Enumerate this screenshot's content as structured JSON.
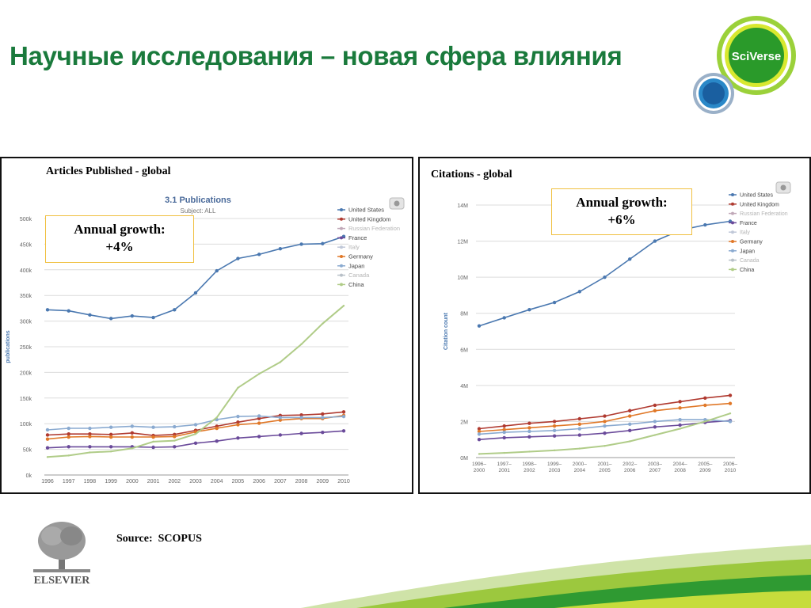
{
  "slide": {
    "title": "Научные исследования – новая сфера влияния",
    "source": "Source:  SCOPUS",
    "logo_text": "SciVerse",
    "publisher": "ELSEVIER",
    "colors": {
      "title": "#1a7a3c",
      "accent_green": "#2e9e2a",
      "accent_blue": "#1a5fa0"
    }
  },
  "panels": {
    "left": {
      "heading": "Articles Published - global",
      "growth_label": "Annual growth:",
      "growth_value": "+4%"
    },
    "right": {
      "heading": "Citations - global",
      "growth_label": "Annual growth:",
      "growth_value": "+6%"
    }
  },
  "chart_data": [
    {
      "type": "line",
      "title": "3.1 Publications",
      "subtitle": "Subject: ALL",
      "xlabel": "",
      "ylabel": "publications",
      "categories": [
        "1996",
        "1997",
        "1998",
        "1999",
        "2000",
        "2001",
        "2002",
        "2003",
        "2004",
        "2005",
        "2006",
        "2007",
        "2008",
        "2009",
        "2010"
      ],
      "ylim": [
        0,
        500000
      ],
      "yticks": [
        0,
        50000,
        100000,
        150000,
        200000,
        250000,
        300000,
        350000,
        400000,
        450000,
        500000
      ],
      "ytick_labels": [
        "0k",
        "50k",
        "100k",
        "150k",
        "200k",
        "250k",
        "300k",
        "350k",
        "400k",
        "450k",
        "500k"
      ],
      "grid": true,
      "legend_position": "right",
      "series": [
        {
          "name": "United States",
          "color": "#4a78b0",
          "marker": true,
          "values": [
            322000,
            320000,
            312000,
            305000,
            310000,
            307000,
            322000,
            355000,
            398000,
            422000,
            430000,
            441000,
            450000,
            451000,
            465000
          ]
        },
        {
          "name": "United Kingdom",
          "color": "#b03a30",
          "marker": true,
          "values": [
            78000,
            80000,
            80000,
            79000,
            82000,
            77000,
            79000,
            87000,
            95000,
            103000,
            110000,
            116000,
            117000,
            119000,
            123000
          ]
        },
        {
          "name": "Russian Federation",
          "color": "#c0a8b8",
          "marker": false,
          "values": [
            null,
            null,
            null,
            null,
            null,
            null,
            null,
            null,
            null,
            null,
            null,
            null,
            null,
            null,
            null
          ]
        },
        {
          "name": "France",
          "color": "#6a4a9a",
          "marker": true,
          "values": [
            53000,
            55000,
            55000,
            55000,
            55000,
            54000,
            55000,
            62000,
            66000,
            72000,
            75000,
            78000,
            81000,
            83000,
            86000
          ]
        },
        {
          "name": "Italy",
          "color": "#c0c8d8",
          "marker": false,
          "values": [
            null,
            null,
            null,
            null,
            null,
            null,
            null,
            null,
            null,
            null,
            null,
            null,
            null,
            null,
            null
          ]
        },
        {
          "name": "Germany",
          "color": "#e07828",
          "marker": true,
          "values": [
            70000,
            74000,
            75000,
            74000,
            74000,
            74000,
            75000,
            84000,
            91000,
            98000,
            101000,
            107000,
            110000,
            110000,
            116000
          ]
        },
        {
          "name": "Japan",
          "color": "#8aaad0",
          "marker": true,
          "values": [
            88000,
            91000,
            91000,
            93000,
            95000,
            93000,
            94000,
            98000,
            108000,
            114000,
            115000,
            112000,
            112000,
            112000,
            114000
          ]
        },
        {
          "name": "Canada",
          "color": "#b8c0c8",
          "marker": false,
          "values": [
            null,
            null,
            null,
            null,
            null,
            null,
            null,
            null,
            null,
            null,
            null,
            null,
            null,
            null,
            null
          ]
        },
        {
          "name": "China",
          "color": "#b0cc88",
          "marker": false,
          "values": [
            35000,
            38000,
            44000,
            46000,
            52000,
            65000,
            67000,
            80000,
            112000,
            170000,
            197000,
            220000,
            255000,
            295000,
            330000
          ]
        }
      ]
    },
    {
      "type": "line",
      "title": "",
      "xlabel": "",
      "ylabel": "Citation count",
      "categories": [
        "1996-2000",
        "1997-2001",
        "1998-2002",
        "1999-2003",
        "2000-2004",
        "2001-2005",
        "2002-2006",
        "2003-2007",
        "2004-2008",
        "2005-2009",
        "2006-2010"
      ],
      "ylim": [
        0,
        14000000
      ],
      "yticks": [
        0,
        2000000,
        4000000,
        6000000,
        8000000,
        10000000,
        12000000,
        14000000
      ],
      "ytick_labels": [
        "0M",
        "2M",
        "4M",
        "6M",
        "8M",
        "10M",
        "12M",
        "14M"
      ],
      "grid": true,
      "legend_position": "top-right",
      "series": [
        {
          "name": "United States",
          "color": "#4a78b0",
          "marker": true,
          "values": [
            7300000,
            7750000,
            8200000,
            8600000,
            9200000,
            10000000,
            11000000,
            12000000,
            12600000,
            12900000,
            13100000
          ]
        },
        {
          "name": "United Kingdom",
          "color": "#b03a30",
          "marker": true,
          "values": [
            1600000,
            1750000,
            1900000,
            2000000,
            2150000,
            2300000,
            2600000,
            2900000,
            3100000,
            3300000,
            3450000
          ]
        },
        {
          "name": "Russian Federation",
          "color": "#c0a8b8",
          "marker": false,
          "values": [
            null,
            null,
            null,
            null,
            null,
            null,
            null,
            null,
            null,
            null,
            null
          ]
        },
        {
          "name": "France",
          "color": "#6a4a9a",
          "marker": true,
          "values": [
            1000000,
            1100000,
            1150000,
            1200000,
            1250000,
            1350000,
            1500000,
            1700000,
            1800000,
            1950000,
            2050000
          ]
        },
        {
          "name": "Italy",
          "color": "#c0c8d8",
          "marker": false,
          "values": [
            null,
            null,
            null,
            null,
            null,
            null,
            null,
            null,
            null,
            null,
            null
          ]
        },
        {
          "name": "Germany",
          "color": "#e07828",
          "marker": true,
          "values": [
            1450000,
            1550000,
            1650000,
            1750000,
            1850000,
            2000000,
            2300000,
            2600000,
            2750000,
            2900000,
            3000000
          ]
        },
        {
          "name": "Japan",
          "color": "#8aaad0",
          "marker": true,
          "values": [
            1300000,
            1400000,
            1450000,
            1500000,
            1600000,
            1750000,
            1850000,
            2000000,
            2100000,
            2100000,
            2000000
          ]
        },
        {
          "name": "Canada",
          "color": "#b8c0c8",
          "marker": false,
          "values": [
            null,
            null,
            null,
            null,
            null,
            null,
            null,
            null,
            null,
            null,
            null
          ]
        },
        {
          "name": "China",
          "color": "#b0cc88",
          "marker": false,
          "values": [
            200000,
            260000,
            330000,
            400000,
            500000,
            650000,
            900000,
            1250000,
            1600000,
            2000000,
            2450000
          ]
        }
      ]
    }
  ]
}
